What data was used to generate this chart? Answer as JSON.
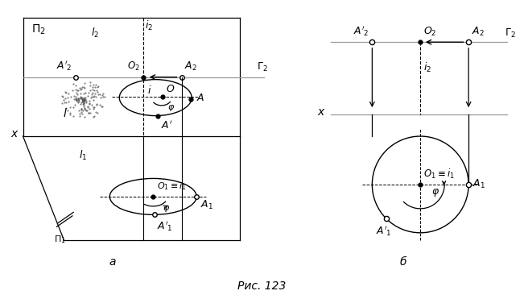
{
  "caption": "Рис. 123",
  "label_a": "а",
  "label_b": "б",
  "bg_color": "#ffffff",
  "lc": "#000000",
  "gc": "#999999"
}
